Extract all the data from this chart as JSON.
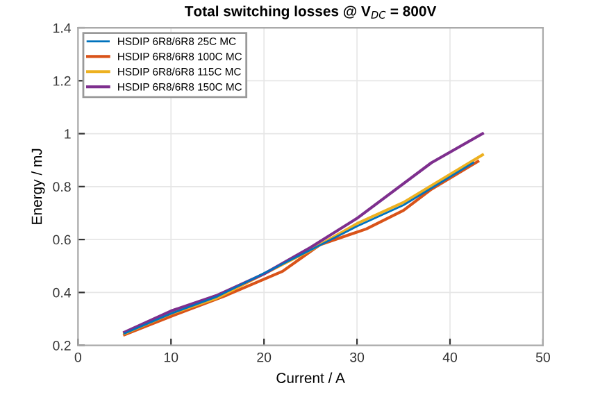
{
  "chart_data": {
    "type": "line",
    "title": "Total switching losses @ V$_{DC}$ = 800V",
    "xlabel": "Current / A",
    "ylabel": "Energy / mJ",
    "xlim": [
      0,
      50
    ],
    "xticks": [
      0,
      10,
      20,
      30,
      40,
      50
    ],
    "ylim": [
      0.2,
      1.4
    ],
    "yticks": [
      0.2,
      0.4,
      0.6,
      0.8,
      1,
      1.2,
      1.4
    ],
    "grid": true,
    "legend": "top left",
    "series": [
      {
        "name": "HSDIP 6R8/6R8 25C MC",
        "color": "#0072bd",
        "x": [
          5,
          10,
          15,
          21,
          25,
          30,
          35,
          42.5
        ],
        "values": [
          0.245,
          0.32,
          0.385,
          0.49,
          0.56,
          0.65,
          0.73,
          0.89
        ]
      },
      {
        "name": "HSDIP 6R8/6R8 100C MC",
        "color": "#d95319",
        "x": [
          5,
          10,
          13,
          16,
          22,
          26,
          31,
          35,
          38,
          43
        ],
        "values": [
          0.24,
          0.31,
          0.35,
          0.39,
          0.48,
          0.58,
          0.64,
          0.71,
          0.79,
          0.895
        ]
      },
      {
        "name": "HSDIP 6R8/6R8 115C MC",
        "color": "#edb120",
        "x": [
          5,
          10,
          15,
          20,
          25,
          30,
          35,
          43.5
        ],
        "values": [
          0.245,
          0.32,
          0.38,
          0.47,
          0.56,
          0.66,
          0.74,
          0.92
        ]
      },
      {
        "name": "HSDIP 6R8/6R8 150C MC",
        "color": "#7e2f8e",
        "x": [
          5,
          10,
          15,
          20,
          25,
          30,
          38,
          43.5
        ],
        "values": [
          0.25,
          0.33,
          0.39,
          0.47,
          0.57,
          0.68,
          0.89,
          1.0
        ]
      }
    ]
  }
}
